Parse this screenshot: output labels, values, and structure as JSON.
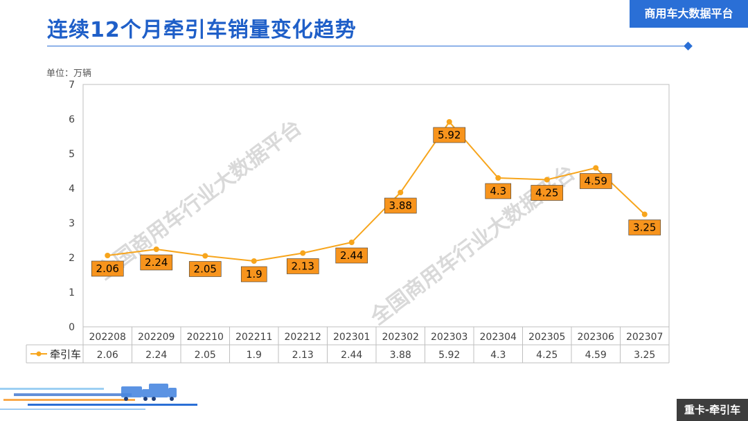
{
  "header": {
    "title": "连续12个月牵引车销量变化趋势",
    "brand": "商用车大数据平台"
  },
  "footer": {
    "tag": "重卡-牵引车"
  },
  "watermark": "全国商用车行业大数据平台",
  "chart_data": {
    "type": "line",
    "unit_label": "单位：万辆",
    "categories": [
      "202208",
      "202209",
      "202210",
      "202211",
      "202212",
      "202301",
      "202302",
      "202303",
      "202304",
      "202305",
      "202306",
      "202307"
    ],
    "series": [
      {
        "name": "牵引车",
        "values": [
          2.06,
          2.24,
          2.05,
          1.9,
          2.13,
          2.44,
          3.88,
          5.92,
          4.3,
          4.25,
          4.59,
          3.25
        ]
      }
    ],
    "ylim": [
      0,
      7
    ],
    "yticks": [
      0,
      1,
      2,
      3,
      4,
      5,
      6,
      7
    ],
    "grid": false,
    "legend": "data-table-left",
    "colors": {
      "line": "#f7a51c",
      "label_bg": "#f7941d",
      "title": "#1f5fc8",
      "brand": "#2a6fd6"
    }
  }
}
